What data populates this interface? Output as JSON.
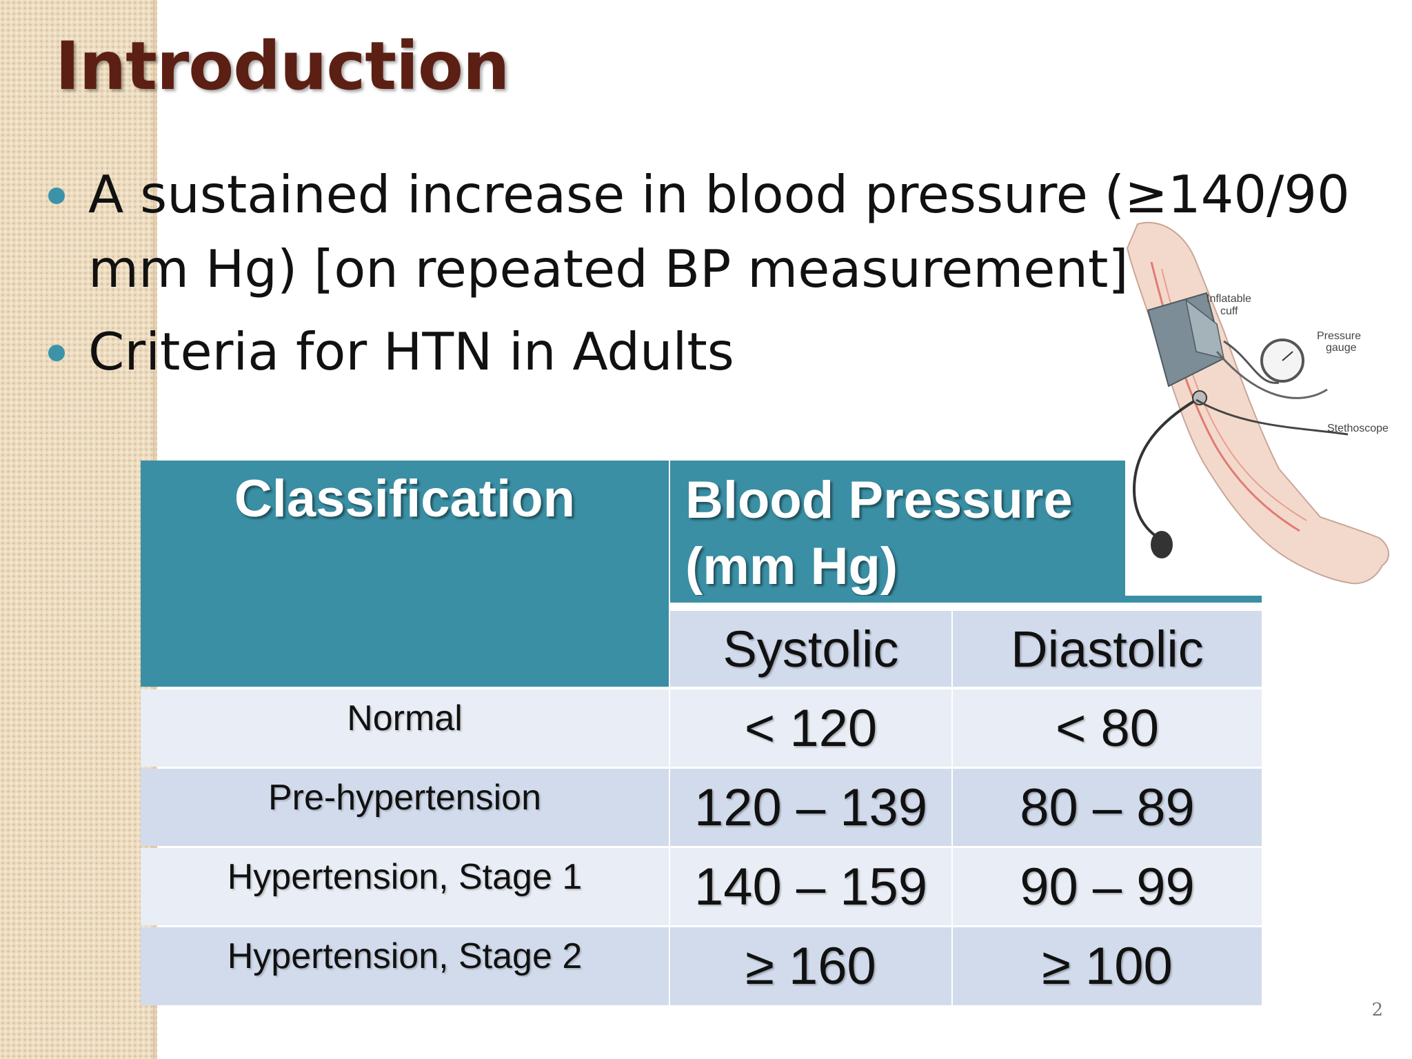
{
  "slide": {
    "title": "Introduction",
    "bullets": [
      "A sustained increase in blood pressure (≥140/90 mm Hg) [on repeated BP measurement]",
      "Criteria for HTN in Adults"
    ],
    "page_number": "2"
  },
  "illustration": {
    "labels": {
      "cuff_line1": "Inflatable",
      "cuff_line2": "cuff",
      "gauge_line1": "Pressure",
      "gauge_line2": "gauge",
      "stethoscope": "Stethoscope"
    }
  },
  "table": {
    "header_classification": "Classification",
    "header_bp_line1": "Blood Pressure",
    "header_bp_line2": "(mm Hg)",
    "sub_systolic": "Systolic",
    "sub_diastolic": "Diastolic",
    "rows": [
      {
        "classification": "Normal",
        "systolic": "< 120",
        "diastolic": "< 80"
      },
      {
        "classification": "Pre-hypertension",
        "systolic": "120 – 139",
        "diastolic": "80 – 89"
      },
      {
        "classification": "Hypertension, Stage 1",
        "systolic": "140 – 159",
        "diastolic": "90 – 99"
      },
      {
        "classification": "Hypertension, Stage 2",
        "systolic": "≥ 160",
        "diastolic": "≥ 100"
      }
    ]
  },
  "colors": {
    "title": "#5c1f13",
    "accent": "#3a8fa4",
    "row_light": "#e9edf5",
    "row_dark": "#d1dbec"
  }
}
